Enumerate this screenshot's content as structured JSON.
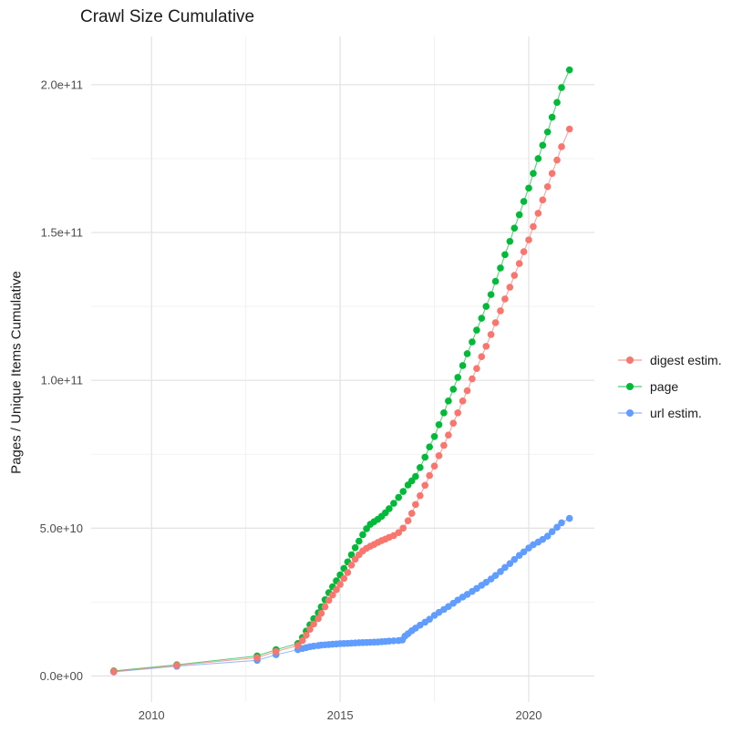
{
  "title": "Crawl Size Cumulative",
  "y_axis": {
    "label": "Pages / Unique Items Cumulative",
    "tick_labels": [
      "0.0e+00",
      "5.0e+10",
      "1.0e+11",
      "1.5e+11",
      "2.0e+11"
    ],
    "tick_values_e9": [
      0,
      50,
      100,
      150,
      200
    ],
    "minor_values_e9": [
      25,
      75,
      125,
      175
    ]
  },
  "x_axis": {
    "tick_labels": [
      "2010",
      "2015",
      "2020"
    ],
    "tick_values": [
      2010,
      2015,
      2020
    ],
    "minor_values": [
      2012.5,
      2017.5
    ]
  },
  "legend": {
    "position": "right",
    "entries": [
      "digest estim.",
      "page",
      "url estim."
    ]
  },
  "colors": {
    "digest_estim": "#F8766D",
    "page": "#00BA38",
    "url_estim": "#619CFF",
    "grid_major": "#e4e4e4",
    "grid_minor": "#efefef",
    "tick_text": "#4d4d4d"
  },
  "chart_data": {
    "type": "line",
    "title": "Crawl Size Cumulative",
    "xlabel": "",
    "ylabel": "Pages / Unique Items Cumulative",
    "x_unit": "decimal year (crawl date)",
    "values_unit": "1e9 pages / unique items (multiply listed values by 1e9)",
    "xlim": [
      2008.4,
      2021.74
    ],
    "ylim_e9": [
      -8.8,
      216.3
    ],
    "grid": "major+minor, light gray on white",
    "legend_position": "right",
    "marker": "point",
    "series": [
      {
        "name": "digest estim.",
        "color": "#F8766D",
        "points": [
          [
            2009.0,
            1.5
          ],
          [
            2010.67,
            3.6
          ],
          [
            2012.8,
            6.2
          ],
          [
            2013.3,
            8.3
          ],
          [
            2013.88,
            10.3
          ],
          [
            2014.0,
            12.0
          ],
          [
            2014.1,
            13.8
          ],
          [
            2014.2,
            15.8
          ],
          [
            2014.3,
            17.6
          ],
          [
            2014.42,
            19.4
          ],
          [
            2014.5,
            21.2
          ],
          [
            2014.6,
            23.4
          ],
          [
            2014.7,
            25.6
          ],
          [
            2014.8,
            27.4
          ],
          [
            2014.9,
            29.2
          ],
          [
            2015.0,
            31.0
          ],
          [
            2015.1,
            33.0
          ],
          [
            2015.2,
            35.0
          ],
          [
            2015.3,
            37.5
          ],
          [
            2015.4,
            39.5
          ],
          [
            2015.5,
            41.0
          ],
          [
            2015.6,
            42.3
          ],
          [
            2015.7,
            43.2
          ],
          [
            2015.8,
            43.9
          ],
          [
            2015.9,
            44.5
          ],
          [
            2016.0,
            45.2
          ],
          [
            2016.1,
            45.8
          ],
          [
            2016.2,
            46.3
          ],
          [
            2016.3,
            46.9
          ],
          [
            2016.42,
            47.5
          ],
          [
            2016.55,
            48.5
          ],
          [
            2016.67,
            50.0
          ],
          [
            2016.8,
            52.5
          ],
          [
            2016.9,
            55.0
          ],
          [
            2017.0,
            58.0
          ],
          [
            2017.12,
            61.0
          ],
          [
            2017.25,
            64.5
          ],
          [
            2017.37,
            67.8
          ],
          [
            2017.5,
            71.0
          ],
          [
            2017.62,
            74.5
          ],
          [
            2017.75,
            78.0
          ],
          [
            2017.87,
            81.5
          ],
          [
            2018.0,
            85.5
          ],
          [
            2018.12,
            89.0
          ],
          [
            2018.25,
            93.0
          ],
          [
            2018.37,
            96.5
          ],
          [
            2018.5,
            100.5
          ],
          [
            2018.62,
            104.0
          ],
          [
            2018.75,
            108.0
          ],
          [
            2018.87,
            111.5
          ],
          [
            2019.0,
            115.5
          ],
          [
            2019.12,
            119.5
          ],
          [
            2019.25,
            123.5
          ],
          [
            2019.37,
            127.5
          ],
          [
            2019.5,
            131.5
          ],
          [
            2019.62,
            135.5
          ],
          [
            2019.75,
            139.5
          ],
          [
            2019.87,
            143.5
          ],
          [
            2020.0,
            147.5
          ],
          [
            2020.12,
            152.0
          ],
          [
            2020.25,
            156.5
          ],
          [
            2020.37,
            161.0
          ],
          [
            2020.5,
            165.5
          ],
          [
            2020.62,
            170.0
          ],
          [
            2020.75,
            174.5
          ],
          [
            2020.87,
            179.0
          ],
          [
            2021.08,
            185.0
          ]
        ]
      },
      {
        "name": "page",
        "color": "#00BA38",
        "points": [
          [
            2009.0,
            1.7
          ],
          [
            2010.67,
            3.8
          ],
          [
            2012.8,
            6.8
          ],
          [
            2013.3,
            8.9
          ],
          [
            2013.88,
            11.0
          ],
          [
            2014.0,
            13.0
          ],
          [
            2014.1,
            15.2
          ],
          [
            2014.2,
            17.3
          ],
          [
            2014.3,
            19.4
          ],
          [
            2014.42,
            21.4
          ],
          [
            2014.5,
            23.4
          ],
          [
            2014.6,
            25.8
          ],
          [
            2014.7,
            28.2
          ],
          [
            2014.8,
            30.2
          ],
          [
            2014.9,
            32.2
          ],
          [
            2015.0,
            34.2
          ],
          [
            2015.1,
            36.4
          ],
          [
            2015.2,
            38.6
          ],
          [
            2015.3,
            41.0
          ],
          [
            2015.4,
            43.4
          ],
          [
            2015.5,
            45.6
          ],
          [
            2015.6,
            47.8
          ],
          [
            2015.7,
            49.8
          ],
          [
            2015.8,
            51.3
          ],
          [
            2015.9,
            52.2
          ],
          [
            2016.0,
            53.0
          ],
          [
            2016.1,
            54.0
          ],
          [
            2016.2,
            55.2
          ],
          [
            2016.3,
            56.6
          ],
          [
            2016.42,
            58.4
          ],
          [
            2016.55,
            60.4
          ],
          [
            2016.67,
            62.4
          ],
          [
            2016.8,
            64.6
          ],
          [
            2016.9,
            66.0
          ],
          [
            2017.0,
            67.5
          ],
          [
            2017.12,
            70.5
          ],
          [
            2017.25,
            74.0
          ],
          [
            2017.37,
            77.5
          ],
          [
            2017.5,
            81.0
          ],
          [
            2017.62,
            85.0
          ],
          [
            2017.75,
            89.0
          ],
          [
            2017.87,
            93.0
          ],
          [
            2018.0,
            97.0
          ],
          [
            2018.12,
            101.0
          ],
          [
            2018.25,
            105.0
          ],
          [
            2018.37,
            109.0
          ],
          [
            2018.5,
            113.0
          ],
          [
            2018.62,
            117.0
          ],
          [
            2018.75,
            121.0
          ],
          [
            2018.87,
            125.0
          ],
          [
            2019.0,
            129.0
          ],
          [
            2019.12,
            133.5
          ],
          [
            2019.25,
            138.0
          ],
          [
            2019.37,
            142.5
          ],
          [
            2019.5,
            147.0
          ],
          [
            2019.62,
            151.5
          ],
          [
            2019.75,
            156.0
          ],
          [
            2019.87,
            160.5
          ],
          [
            2020.0,
            165.0
          ],
          [
            2020.12,
            170.0
          ],
          [
            2020.25,
            175.0
          ],
          [
            2020.37,
            179.5
          ],
          [
            2020.5,
            184.0
          ],
          [
            2020.62,
            189.0
          ],
          [
            2020.75,
            194.0
          ],
          [
            2020.87,
            199.0
          ],
          [
            2021.08,
            205.0
          ]
        ]
      },
      {
        "name": "url estim.",
        "color": "#619CFF",
        "points": [
          [
            2009.0,
            1.4
          ],
          [
            2010.67,
            3.3
          ],
          [
            2012.8,
            5.3
          ],
          [
            2013.3,
            7.2
          ],
          [
            2013.88,
            8.9
          ],
          [
            2014.0,
            9.3
          ],
          [
            2014.1,
            9.6
          ],
          [
            2014.2,
            9.9
          ],
          [
            2014.3,
            10.1
          ],
          [
            2014.42,
            10.3
          ],
          [
            2014.5,
            10.45
          ],
          [
            2014.6,
            10.55
          ],
          [
            2014.7,
            10.65
          ],
          [
            2014.8,
            10.75
          ],
          [
            2014.9,
            10.85
          ],
          [
            2015.0,
            10.95
          ],
          [
            2015.1,
            11.0
          ],
          [
            2015.2,
            11.05
          ],
          [
            2015.3,
            11.1
          ],
          [
            2015.4,
            11.2
          ],
          [
            2015.5,
            11.25
          ],
          [
            2015.6,
            11.3
          ],
          [
            2015.7,
            11.35
          ],
          [
            2015.8,
            11.4
          ],
          [
            2015.9,
            11.45
          ],
          [
            2016.0,
            11.5
          ],
          [
            2016.1,
            11.6
          ],
          [
            2016.2,
            11.7
          ],
          [
            2016.3,
            11.8
          ],
          [
            2016.42,
            11.9
          ],
          [
            2016.55,
            12.0
          ],
          [
            2016.65,
            12.2
          ],
          [
            2016.72,
            13.5
          ],
          [
            2016.8,
            14.3
          ],
          [
            2016.9,
            15.3
          ],
          [
            2017.0,
            16.2
          ],
          [
            2017.12,
            17.2
          ],
          [
            2017.25,
            18.2
          ],
          [
            2017.37,
            19.2
          ],
          [
            2017.5,
            20.5
          ],
          [
            2017.62,
            21.5
          ],
          [
            2017.75,
            22.5
          ],
          [
            2017.87,
            23.5
          ],
          [
            2018.0,
            24.6
          ],
          [
            2018.12,
            25.7
          ],
          [
            2018.25,
            26.7
          ],
          [
            2018.37,
            27.6
          ],
          [
            2018.5,
            28.6
          ],
          [
            2018.62,
            29.6
          ],
          [
            2018.75,
            30.7
          ],
          [
            2018.87,
            31.7
          ],
          [
            2019.0,
            32.8
          ],
          [
            2019.12,
            34.0
          ],
          [
            2019.25,
            35.3
          ],
          [
            2019.37,
            36.7
          ],
          [
            2019.5,
            38.0
          ],
          [
            2019.62,
            39.4
          ],
          [
            2019.75,
            40.8
          ],
          [
            2019.87,
            42.0
          ],
          [
            2020.0,
            43.3
          ],
          [
            2020.12,
            44.4
          ],
          [
            2020.25,
            45.3
          ],
          [
            2020.37,
            46.2
          ],
          [
            2020.5,
            47.3
          ],
          [
            2020.62,
            48.8
          ],
          [
            2020.75,
            50.3
          ],
          [
            2020.87,
            51.8
          ],
          [
            2021.08,
            53.3
          ]
        ]
      }
    ]
  }
}
